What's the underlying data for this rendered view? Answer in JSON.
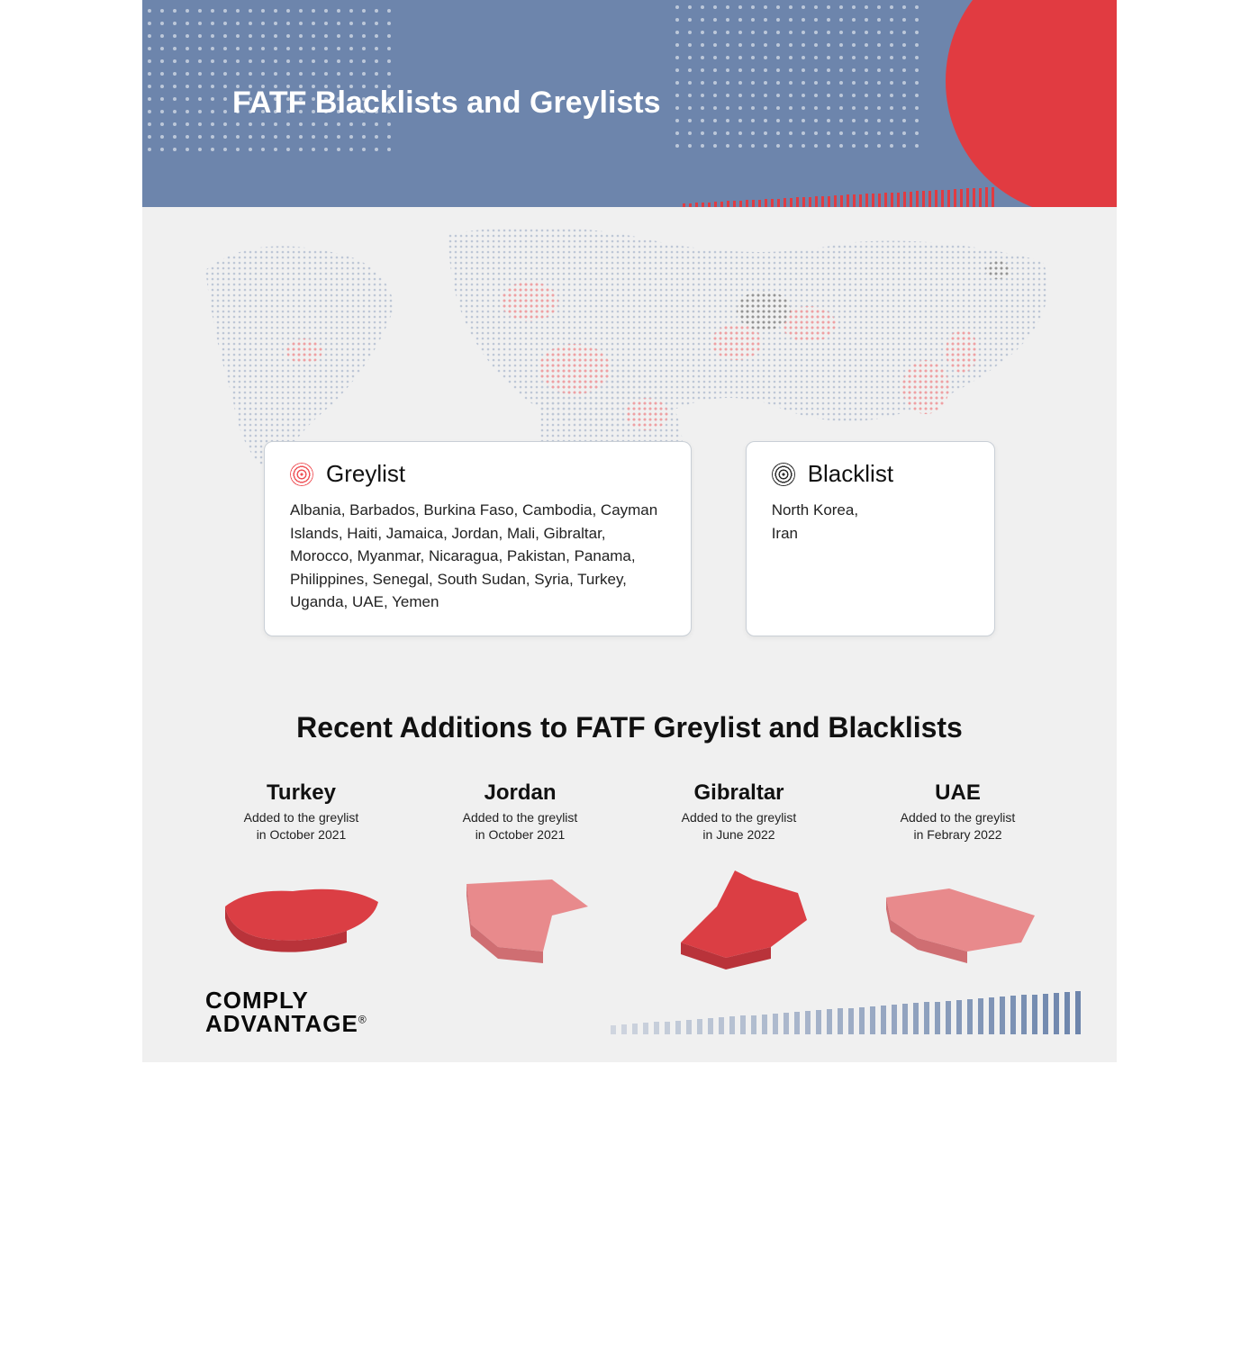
{
  "colors": {
    "header_bg": "#6d85ac",
    "page_bg": "#f0f0f0",
    "accent_red": "#e13b41",
    "card_border": "#c9cfd6",
    "text": "#111111",
    "greylist_swatch": "#ef5358",
    "blacklist_swatch": "#2b2b2b",
    "map_base": "#b9c4d6",
    "map_greylist": "#ef5358",
    "map_blacklist": "#3a3a3a",
    "shape_red_dark": "#db3e44",
    "shape_red_light": "#e88a8c"
  },
  "header": {
    "title": "FATF Blacklists and Greylists"
  },
  "legend": {
    "greylist": {
      "title": "Greylist",
      "countries": "Albania, Barbados, Burkina Faso, Cambodia, Cayman Islands, Haiti, Jamaica, Jordan, Mali, Gibraltar, Morocco, Myanmar, Nicaragua, Pakistan, Panama, Philippines, Senegal, South Sudan, Syria, Turkey, Uganda, UAE, Yemen"
    },
    "blacklist": {
      "title": "Blacklist",
      "countries": "North Korea,\nIran"
    }
  },
  "recent": {
    "title": "Recent Additions to FATF Greylist and Blacklists",
    "items": [
      {
        "name": "Turkey",
        "line1": "Added to the greylist",
        "line2": "in October 2021",
        "shade": "dark"
      },
      {
        "name": "Jordan",
        "line1": "Added to the greylist",
        "line2": "in October 2021",
        "shade": "light"
      },
      {
        "name": "Gibraltar",
        "line1": "Added to the greylist",
        "line2": "in June 2022",
        "shade": "dark"
      },
      {
        "name": "UAE",
        "line1": "Added to the greylist",
        "line2": "in Febrary 2022",
        "shade": "light"
      }
    ]
  },
  "footer": {
    "logo_line1": "COMPLY",
    "logo_line2": "ADVANTAGE",
    "registered": "®"
  },
  "bars": {
    "header_accent_count": 50,
    "header_accent_min_h": 4,
    "header_accent_max_h": 22,
    "footer_count": 44,
    "footer_min_h": 10,
    "footer_max_h": 48
  }
}
